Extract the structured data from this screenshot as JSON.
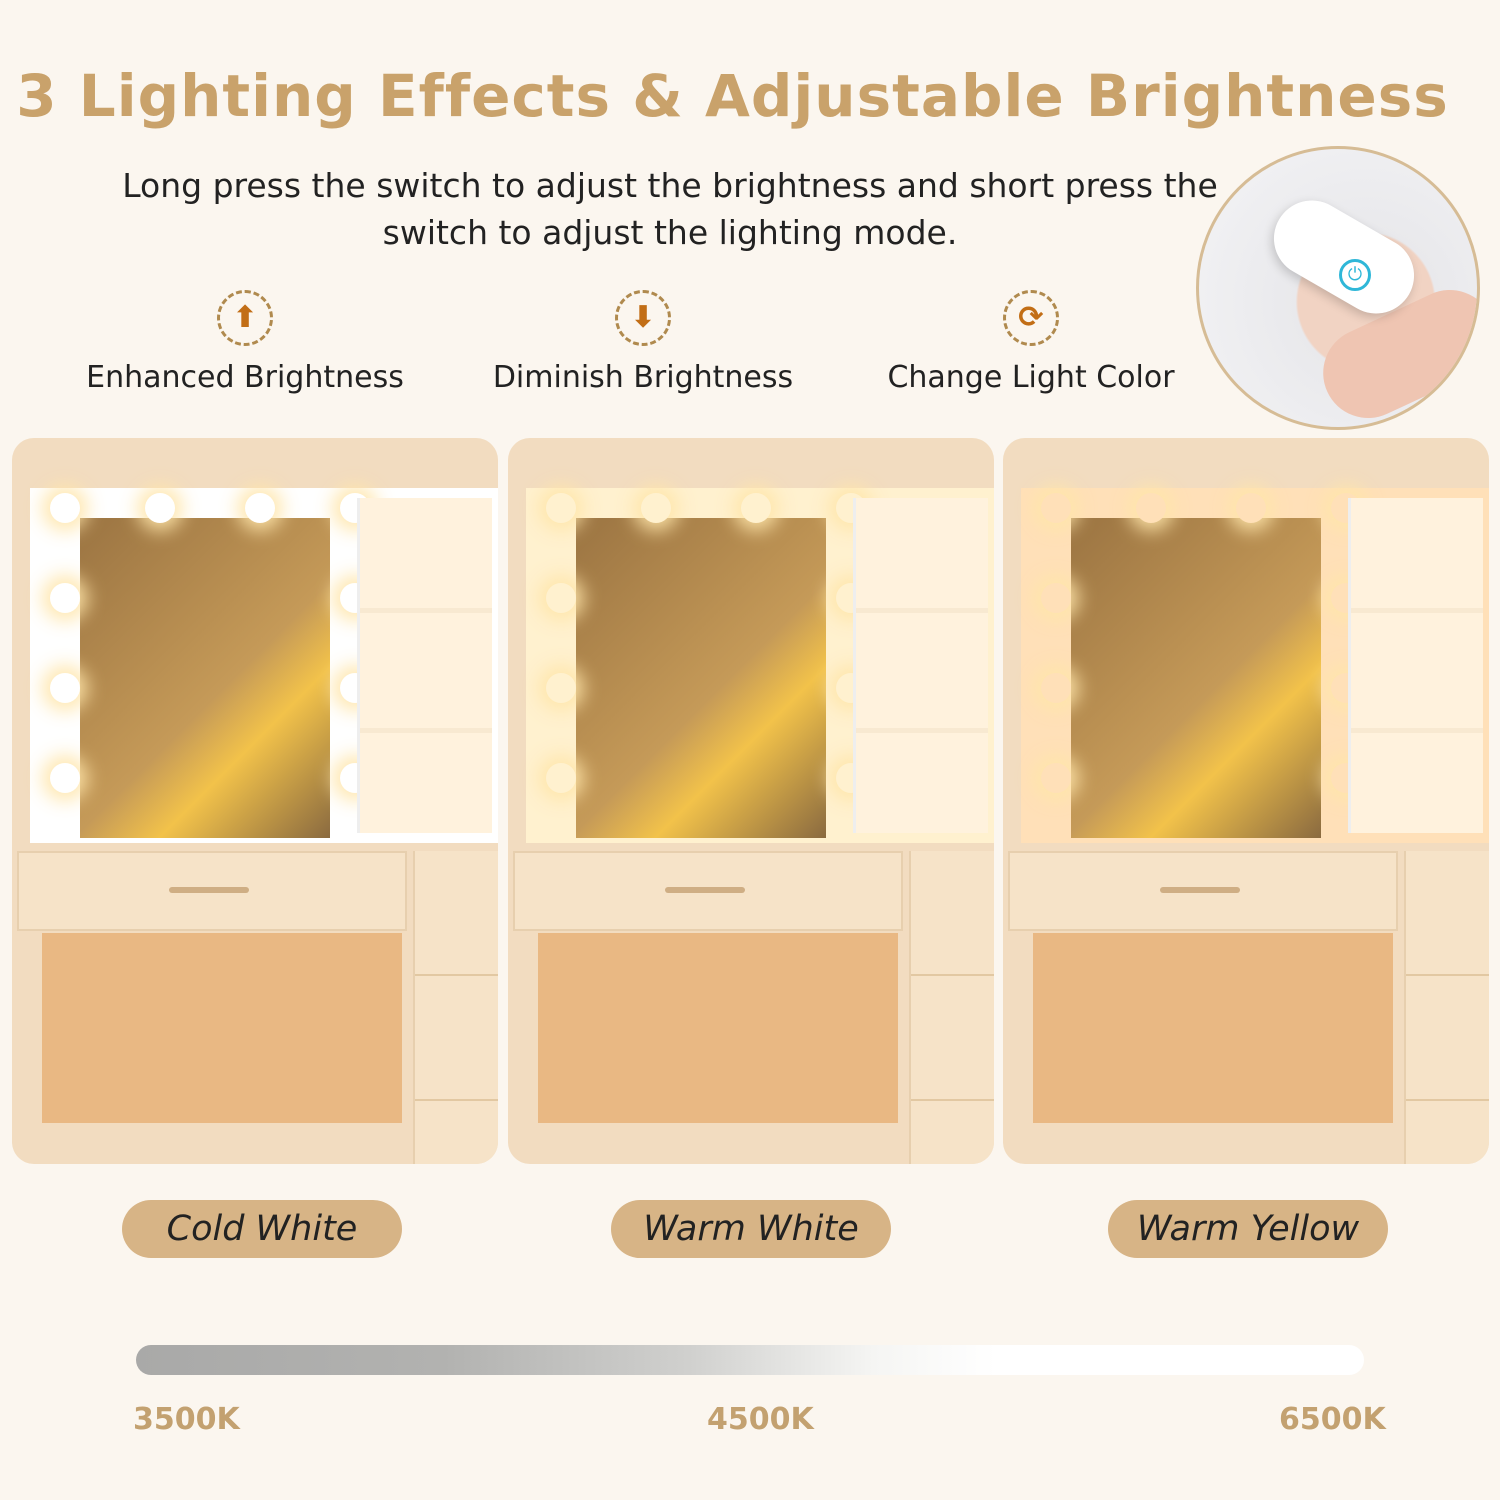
{
  "title": "3 Lighting Effects & Adjustable Brightness",
  "subtitle": "Long press the switch to adjust the brightness and short press the switch to adjust the lighting mode.",
  "features": [
    {
      "label": "Enhanced Brightness",
      "icon": "arrow-up-icon"
    },
    {
      "label": "Diminish Brightness",
      "icon": "arrow-down-icon"
    },
    {
      "label": "Change Light Color",
      "icon": "cycle-icon"
    }
  ],
  "modes": [
    {
      "label": "Cold White",
      "tint": "#ffffff"
    },
    {
      "label": "Warm White",
      "tint": "#fff1cf"
    },
    {
      "label": "Warm Yellow",
      "tint": "#ffe0b8"
    }
  ],
  "scale": {
    "ticks": [
      "3500K",
      "4500K",
      "6500K"
    ]
  },
  "colors": {
    "title": "#c9a26b",
    "pill": "#d7b486",
    "icon": "#c26e16",
    "tick": "#c3a170"
  }
}
